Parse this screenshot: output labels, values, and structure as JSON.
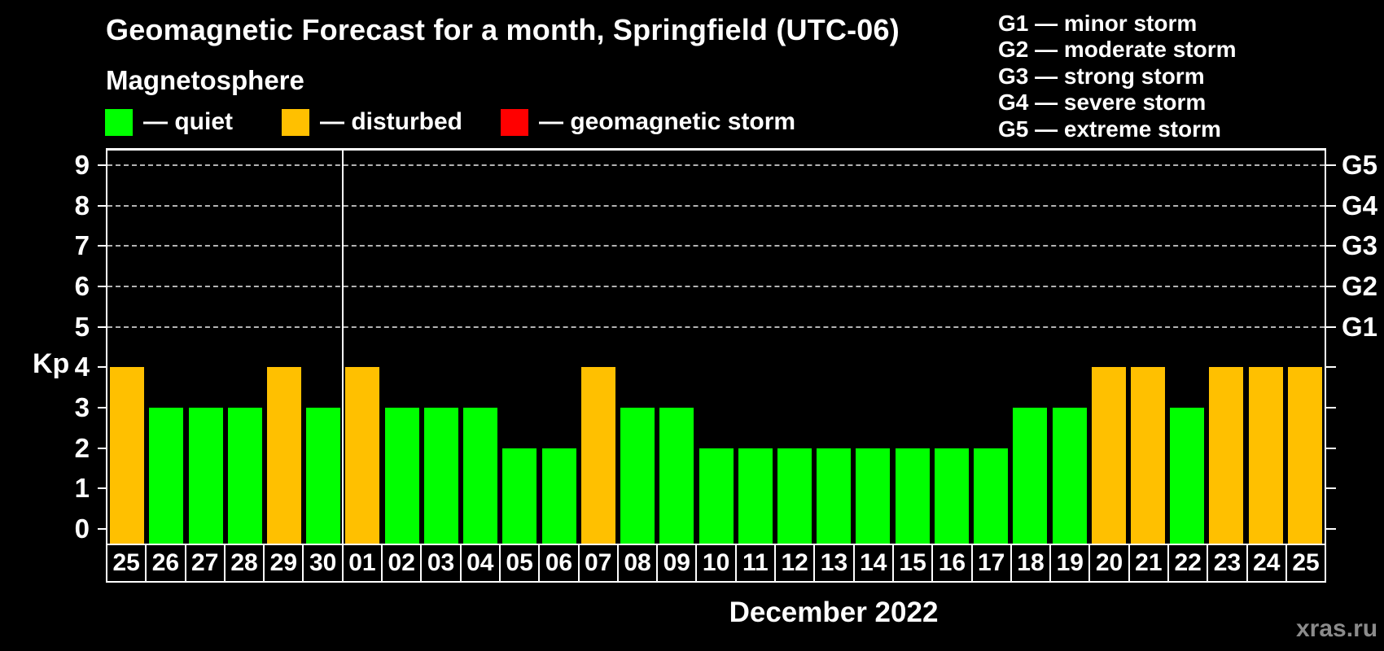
{
  "header": {
    "title": "Geomagnetic Forecast for a month, Springfield (UTC-06)",
    "subtitle": "Magnetosphere",
    "watermark": "xras.ru"
  },
  "legend": {
    "items": [
      {
        "name": "quiet",
        "label": "— quiet",
        "color": "#00ff00"
      },
      {
        "name": "disturbed",
        "label": "— disturbed",
        "color": "#ffc000"
      },
      {
        "name": "storm",
        "label": "— geomagnetic storm",
        "color": "#ff0000"
      }
    ]
  },
  "g_legend": {
    "items": [
      {
        "label": "G1 — minor storm"
      },
      {
        "label": "G2 — moderate storm"
      },
      {
        "label": "G3 — strong storm"
      },
      {
        "label": "G4 — severe storm"
      },
      {
        "label": "G5 — extreme storm"
      }
    ]
  },
  "chart_data": {
    "type": "bar",
    "title": "Geomagnetic Forecast for a month, Springfield (UTC-06)",
    "subtitle": "Magnetosphere",
    "xlabel": "December 2022",
    "ylabel": "Kp",
    "ylim": [
      0,
      9
    ],
    "grid": "horizontal dashed lines at Kp 5–9 only",
    "legend_position": "top",
    "categories": [
      "25",
      "26",
      "27",
      "28",
      "29",
      "30",
      "01",
      "02",
      "03",
      "04",
      "05",
      "06",
      "07",
      "08",
      "09",
      "10",
      "11",
      "12",
      "13",
      "14",
      "15",
      "16",
      "17",
      "18",
      "19",
      "20",
      "21",
      "22",
      "23",
      "24",
      "25"
    ],
    "values": [
      4,
      3,
      3,
      3,
      4,
      3,
      4,
      3,
      3,
      3,
      2,
      2,
      4,
      3,
      3,
      2,
      2,
      2,
      2,
      2,
      2,
      2,
      2,
      3,
      3,
      4,
      4,
      3,
      4,
      4,
      4
    ],
    "statuses": [
      "disturbed",
      "quiet",
      "quiet",
      "quiet",
      "disturbed",
      "quiet",
      "disturbed",
      "quiet",
      "quiet",
      "quiet",
      "quiet",
      "quiet",
      "disturbed",
      "quiet",
      "quiet",
      "quiet",
      "quiet",
      "quiet",
      "quiet",
      "quiet",
      "quiet",
      "quiet",
      "quiet",
      "quiet",
      "quiet",
      "disturbed",
      "disturbed",
      "quiet",
      "disturbed",
      "disturbed",
      "disturbed"
    ],
    "separator_after_column": 6,
    "y_ticks": [
      0,
      1,
      2,
      3,
      4,
      5,
      6,
      7,
      8,
      9
    ],
    "right_axis": [
      {
        "kp": 5,
        "label": "G1"
      },
      {
        "kp": 6,
        "label": "G2"
      },
      {
        "kp": 7,
        "label": "G3"
      },
      {
        "kp": 8,
        "label": "G4"
      },
      {
        "kp": 9,
        "label": "G5"
      }
    ]
  }
}
